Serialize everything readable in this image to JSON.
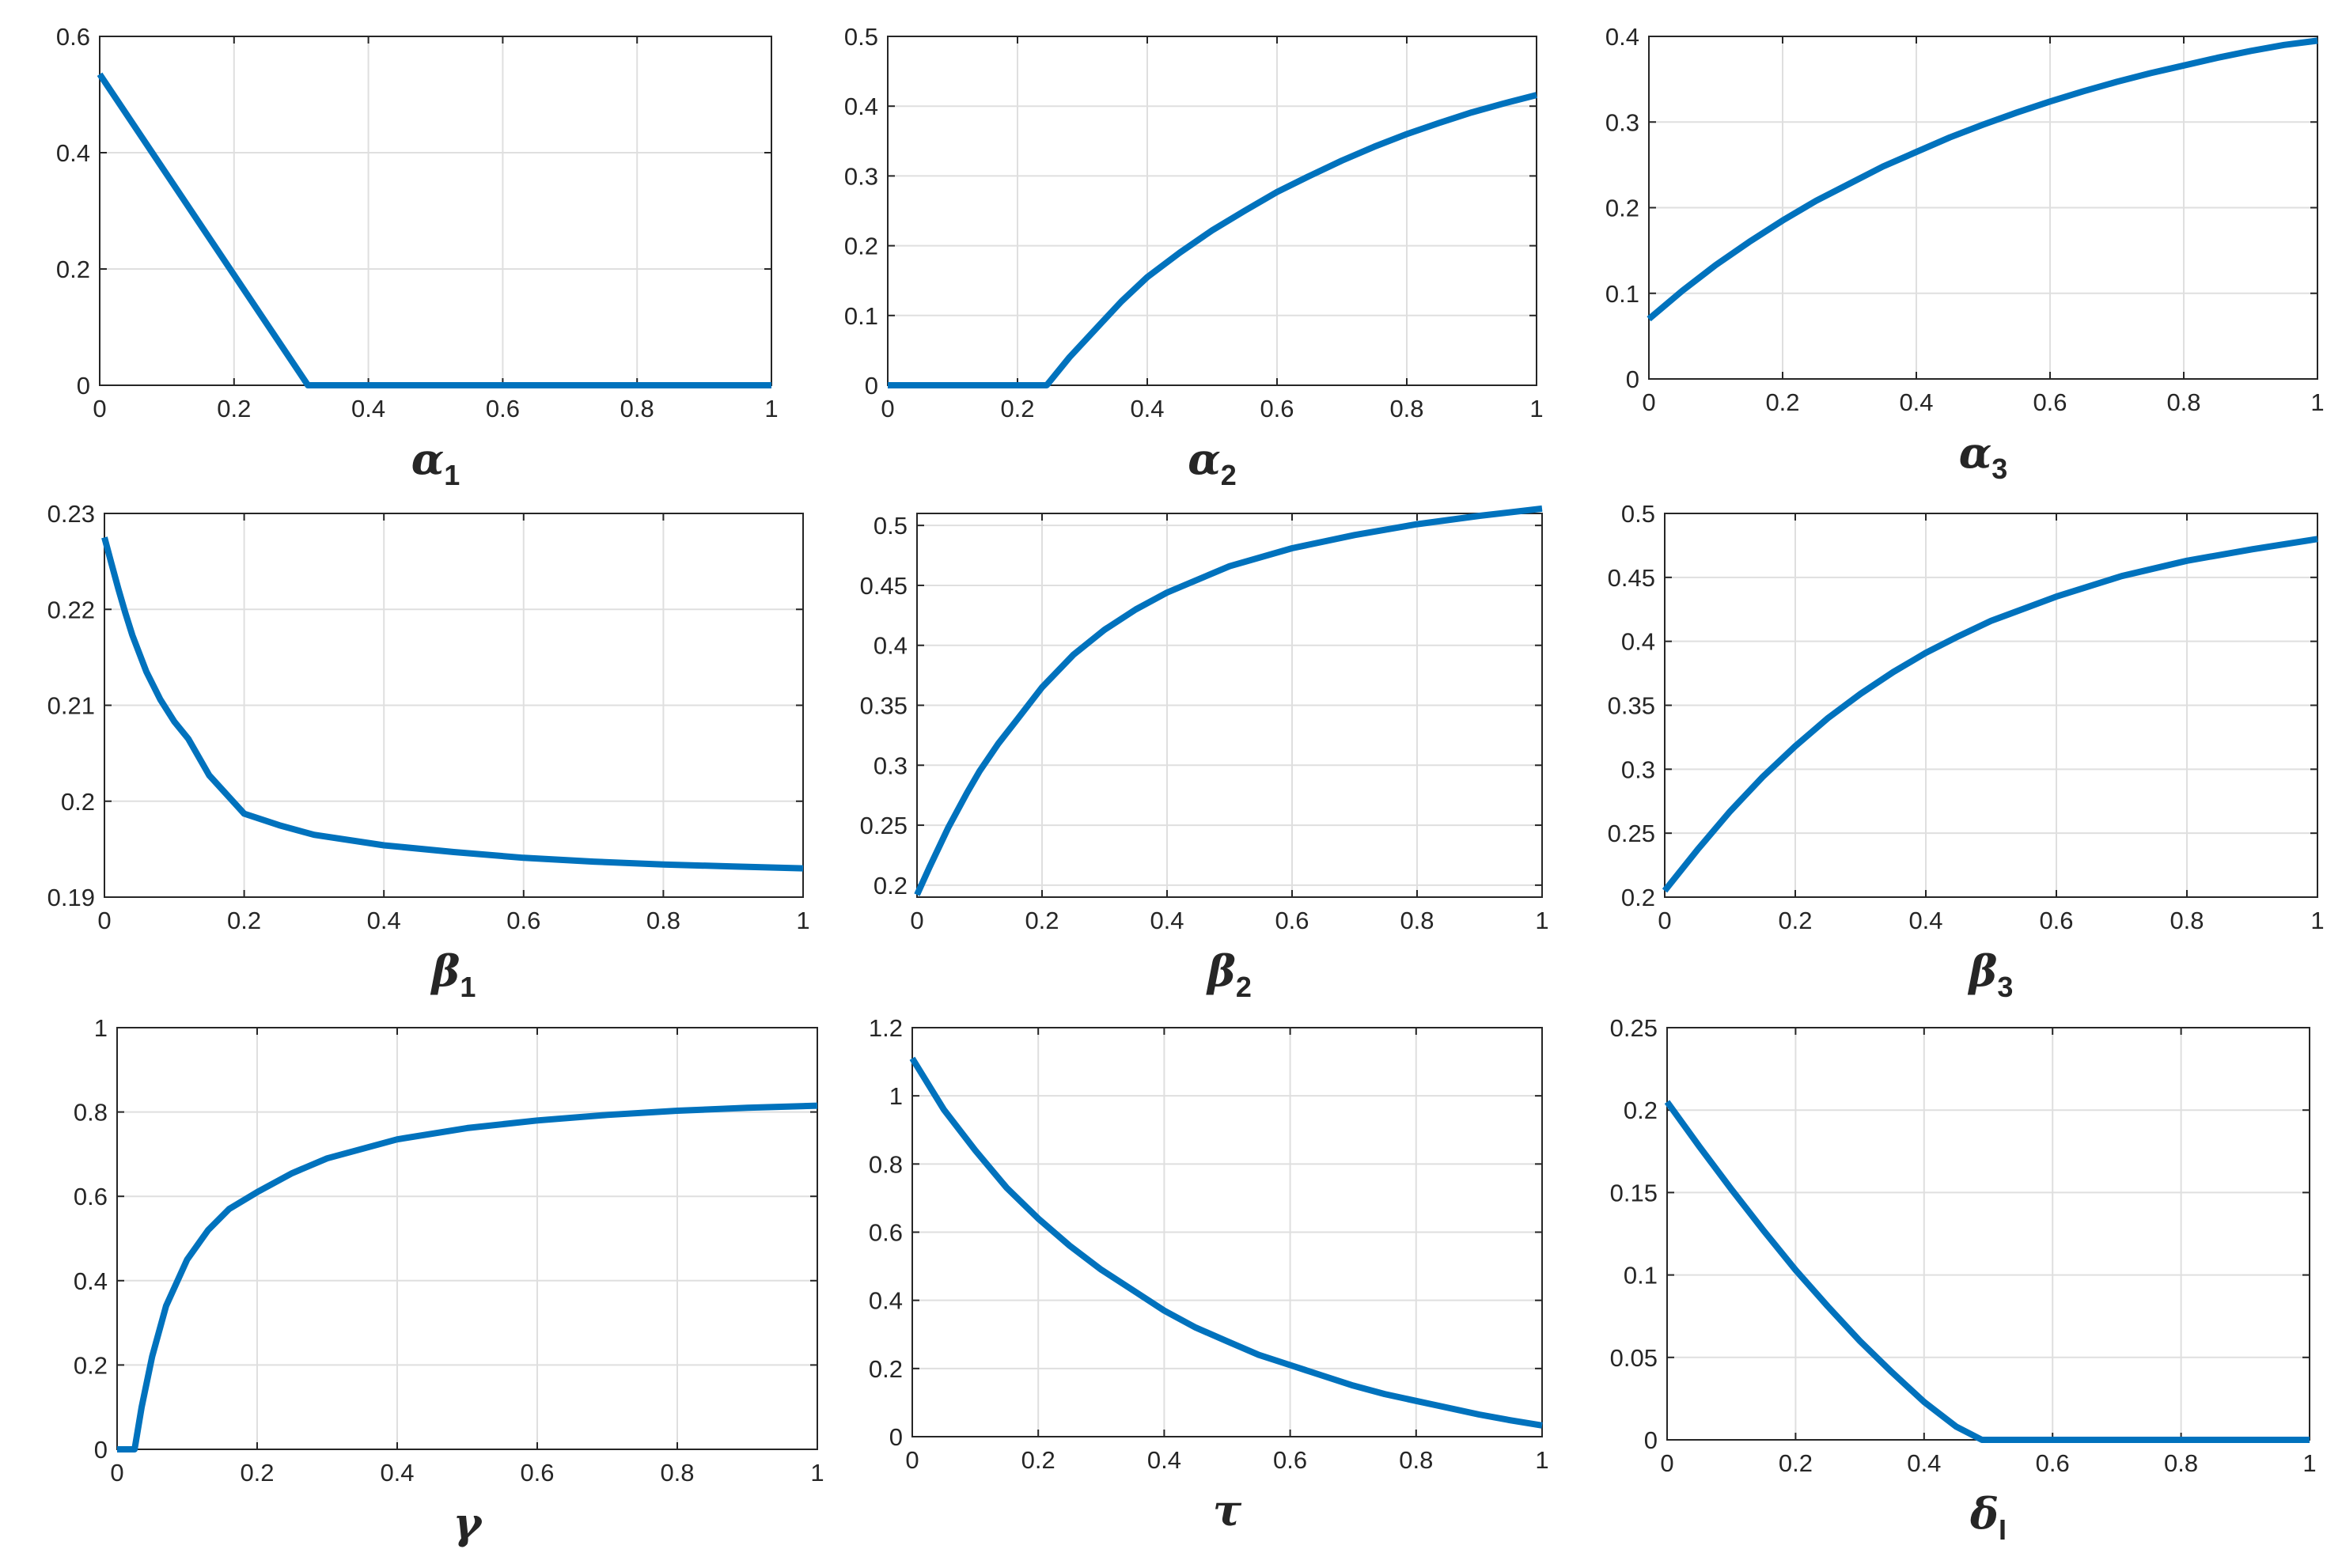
{
  "figure": {
    "background": "#ffffff",
    "line_color": "#0072BD",
    "grid_color": "#dfdfdf",
    "axis_color": "#262626"
  },
  "chart_data": [
    {
      "id": "alpha1",
      "type": "line",
      "xlabel": "α",
      "xlabel_sub": "1",
      "xlim": [
        0,
        1
      ],
      "ylim": [
        0,
        0.6
      ],
      "xticks": [
        0,
        0.2,
        0.4,
        0.6,
        0.8,
        1
      ],
      "yticks": [
        0,
        0.2,
        0.4,
        0.6
      ],
      "xtick_labels": [
        "0",
        "0.2",
        "0.4",
        "0.6",
        "0.8",
        "1"
      ],
      "ytick_labels": [
        "0",
        "0.2",
        "0.4",
        "0.6"
      ],
      "grid": true,
      "series": [
        {
          "x": [
            0,
            0.31,
            1
          ],
          "y": [
            0.535,
            0,
            0
          ]
        }
      ]
    },
    {
      "id": "alpha2",
      "type": "line",
      "xlabel": "α",
      "xlabel_sub": "2",
      "xlim": [
        0,
        1
      ],
      "ylim": [
        0,
        0.5
      ],
      "xticks": [
        0,
        0.2,
        0.4,
        0.6,
        0.8,
        1
      ],
      "yticks": [
        0,
        0.1,
        0.2,
        0.3,
        0.4,
        0.5
      ],
      "xtick_labels": [
        "0",
        "0.2",
        "0.4",
        "0.6",
        "0.8",
        "1"
      ],
      "ytick_labels": [
        "0",
        "0.1",
        "0.2",
        "0.3",
        "0.4",
        "0.5"
      ],
      "grid": true,
      "series": [
        {
          "x": [
            0,
            0.245,
            0.28,
            0.32,
            0.36,
            0.4,
            0.45,
            0.5,
            0.55,
            0.6,
            0.65,
            0.7,
            0.75,
            0.8,
            0.85,
            0.9,
            0.95,
            1
          ],
          "y": [
            0,
            0,
            0.04,
            0.08,
            0.12,
            0.155,
            0.19,
            0.222,
            0.25,
            0.277,
            0.3,
            0.322,
            0.342,
            0.36,
            0.376,
            0.391,
            0.404,
            0.416
          ]
        }
      ]
    },
    {
      "id": "alpha3",
      "type": "line",
      "xlabel": "α",
      "xlabel_sub": "3",
      "xlim": [
        0,
        1
      ],
      "ylim": [
        0,
        0.4
      ],
      "xticks": [
        0,
        0.2,
        0.4,
        0.6,
        0.8,
        1
      ],
      "yticks": [
        0,
        0.1,
        0.2,
        0.3,
        0.4
      ],
      "xtick_labels": [
        "0",
        "0.2",
        "0.4",
        "0.6",
        "0.8",
        "1"
      ],
      "ytick_labels": [
        "0",
        "0.1",
        "0.2",
        "0.3",
        "0.4"
      ],
      "grid": true,
      "series": [
        {
          "x": [
            0,
            0.05,
            0.1,
            0.15,
            0.2,
            0.25,
            0.3,
            0.35,
            0.4,
            0.45,
            0.5,
            0.55,
            0.6,
            0.65,
            0.7,
            0.75,
            0.8,
            0.85,
            0.9,
            0.95,
            1
          ],
          "y": [
            0.07,
            0.103,
            0.133,
            0.16,
            0.185,
            0.208,
            0.228,
            0.248,
            0.265,
            0.282,
            0.297,
            0.311,
            0.324,
            0.336,
            0.347,
            0.357,
            0.366,
            0.375,
            0.383,
            0.39,
            0.395
          ]
        }
      ]
    },
    {
      "id": "beta1",
      "type": "line",
      "xlabel": "β",
      "xlabel_sub": "1",
      "xlim": [
        0,
        1
      ],
      "ylim": [
        0.19,
        0.23
      ],
      "xticks": [
        0,
        0.2,
        0.4,
        0.6,
        0.8,
        1
      ],
      "yticks": [
        0.19,
        0.2,
        0.21,
        0.22,
        0.23
      ],
      "xtick_labels": [
        "0",
        "0.2",
        "0.4",
        "0.6",
        "0.8",
        "1"
      ],
      "ytick_labels": [
        "0.19",
        "0.2",
        "0.21",
        "0.22",
        "0.23"
      ],
      "grid": true,
      "series": [
        {
          "x": [
            0,
            0.01,
            0.02,
            0.03,
            0.04,
            0.06,
            0.08,
            0.1,
            0.12,
            0.15,
            0.2,
            0.25,
            0.3,
            0.4,
            0.5,
            0.6,
            0.7,
            0.8,
            0.9,
            1
          ],
          "y": [
            0.2275,
            0.2248,
            0.2221,
            0.2196,
            0.2173,
            0.2135,
            0.2106,
            0.2083,
            0.2065,
            0.2027,
            0.1987,
            0.1975,
            0.1965,
            0.1954,
            0.1947,
            0.1941,
            0.1937,
            0.1934,
            0.1932,
            0.193
          ]
        }
      ]
    },
    {
      "id": "beta2",
      "type": "line",
      "xlabel": "β",
      "xlabel_sub": "2",
      "xlim": [
        0,
        1
      ],
      "ylim": [
        0.19,
        0.51
      ],
      "xticks": [
        0,
        0.2,
        0.4,
        0.6,
        0.8,
        1
      ],
      "yticks": [
        0.2,
        0.25,
        0.3,
        0.35,
        0.4,
        0.45,
        0.5
      ],
      "xtick_labels": [
        "0",
        "0.2",
        "0.4",
        "0.6",
        "0.8",
        "1"
      ],
      "ytick_labels": [
        "0.2",
        "0.25",
        "0.3",
        "0.35",
        "0.4",
        "0.45",
        "0.5"
      ],
      "grid": true,
      "series": [
        {
          "x": [
            0,
            0.02,
            0.05,
            0.08,
            0.1,
            0.13,
            0.16,
            0.2,
            0.25,
            0.3,
            0.35,
            0.4,
            0.5,
            0.6,
            0.7,
            0.8,
            0.9,
            1
          ],
          "y": [
            0.192,
            0.215,
            0.248,
            0.277,
            0.295,
            0.318,
            0.338,
            0.365,
            0.392,
            0.413,
            0.43,
            0.444,
            0.466,
            0.481,
            0.492,
            0.501,
            0.508,
            0.514
          ]
        }
      ]
    },
    {
      "id": "beta3",
      "type": "line",
      "xlabel": "β",
      "xlabel_sub": "3",
      "xlim": [
        0,
        1
      ],
      "ylim": [
        0.2,
        0.5
      ],
      "xticks": [
        0,
        0.2,
        0.4,
        0.6,
        0.8,
        1
      ],
      "yticks": [
        0.2,
        0.25,
        0.3,
        0.35,
        0.4,
        0.45,
        0.5
      ],
      "xtick_labels": [
        "0",
        "0.2",
        "0.4",
        "0.6",
        "0.8",
        "1"
      ],
      "ytick_labels": [
        "0.2",
        "0.25",
        "0.3",
        "0.35",
        "0.4",
        "0.45",
        "0.5"
      ],
      "grid": true,
      "series": [
        {
          "x": [
            0,
            0.05,
            0.1,
            0.15,
            0.2,
            0.25,
            0.3,
            0.35,
            0.4,
            0.45,
            0.5,
            0.6,
            0.7,
            0.8,
            0.9,
            1
          ],
          "y": [
            0.205,
            0.237,
            0.267,
            0.294,
            0.318,
            0.34,
            0.359,
            0.376,
            0.391,
            0.404,
            0.416,
            0.435,
            0.451,
            0.463,
            0.472,
            0.48
          ]
        }
      ]
    },
    {
      "id": "gamma",
      "type": "line",
      "xlabel": "γ",
      "xlabel_sub": "",
      "xlim": [
        0,
        1
      ],
      "ylim": [
        0,
        1
      ],
      "xticks": [
        0,
        0.2,
        0.4,
        0.6,
        0.8,
        1
      ],
      "yticks": [
        0,
        0.2,
        0.4,
        0.6,
        0.8,
        1
      ],
      "xtick_labels": [
        "0",
        "0.2",
        "0.4",
        "0.6",
        "0.8",
        "1"
      ],
      "ytick_labels": [
        "0",
        "0.2",
        "0.4",
        "0.6",
        "0.8",
        "1"
      ],
      "grid": true,
      "series": [
        {
          "x": [
            0,
            0.025,
            0.035,
            0.05,
            0.07,
            0.1,
            0.13,
            0.16,
            0.2,
            0.25,
            0.3,
            0.4,
            0.5,
            0.6,
            0.7,
            0.8,
            0.9,
            1
          ],
          "y": [
            0,
            0,
            0.1,
            0.22,
            0.34,
            0.45,
            0.52,
            0.57,
            0.61,
            0.655,
            0.69,
            0.735,
            0.762,
            0.78,
            0.793,
            0.803,
            0.81,
            0.815
          ]
        }
      ]
    },
    {
      "id": "tau",
      "type": "line",
      "xlabel": "τ",
      "xlabel_sub": "",
      "xlim": [
        0,
        1
      ],
      "ylim": [
        0,
        1.2
      ],
      "xticks": [
        0,
        0.2,
        0.4,
        0.6,
        0.8,
        1
      ],
      "yticks": [
        0,
        0.2,
        0.4,
        0.6,
        0.8,
        1,
        1.2
      ],
      "xtick_labels": [
        "0",
        "0.2",
        "0.4",
        "0.6",
        "0.8",
        "1"
      ],
      "ytick_labels": [
        "0",
        "0.2",
        "0.4",
        "0.6",
        "0.8",
        "1",
        "1.2"
      ],
      "grid": true,
      "series": [
        {
          "x": [
            0,
            0.05,
            0.1,
            0.15,
            0.2,
            0.25,
            0.3,
            0.35,
            0.4,
            0.45,
            0.5,
            0.55,
            0.6,
            0.65,
            0.7,
            0.75,
            0.8,
            0.85,
            0.9,
            0.95,
            1
          ],
          "y": [
            1.11,
            0.96,
            0.84,
            0.73,
            0.64,
            0.56,
            0.49,
            0.43,
            0.37,
            0.32,
            0.28,
            0.24,
            0.21,
            0.18,
            0.15,
            0.125,
            0.105,
            0.085,
            0.065,
            0.048,
            0.033
          ]
        }
      ]
    },
    {
      "id": "deltaI",
      "type": "line",
      "xlabel": "δ",
      "xlabel_sub": "I",
      "xlim": [
        0,
        1
      ],
      "ylim": [
        0,
        0.25
      ],
      "xticks": [
        0,
        0.2,
        0.4,
        0.6,
        0.8,
        1
      ],
      "yticks": [
        0,
        0.05,
        0.1,
        0.15,
        0.2,
        0.25
      ],
      "xtick_labels": [
        "0",
        "0.2",
        "0.4",
        "0.6",
        "0.8",
        "1"
      ],
      "ytick_labels": [
        "0",
        "0.05",
        "0.1",
        "0.15",
        "0.2",
        "0.25"
      ],
      "grid": true,
      "series": [
        {
          "x": [
            0,
            0.05,
            0.1,
            0.15,
            0.2,
            0.25,
            0.3,
            0.35,
            0.4,
            0.45,
            0.49,
            1
          ],
          "y": [
            0.205,
            0.178,
            0.152,
            0.127,
            0.103,
            0.081,
            0.06,
            0.041,
            0.023,
            0.008,
            0,
            0
          ]
        }
      ]
    }
  ]
}
